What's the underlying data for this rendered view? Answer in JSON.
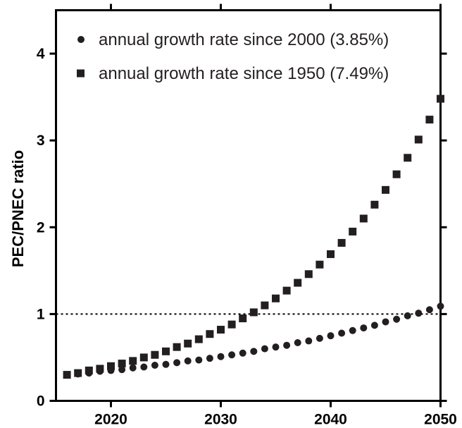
{
  "chart_data": {
    "type": "scatter",
    "ylabel": "PEC/PNEC ratio",
    "xlabel": "",
    "xlim": [
      2015,
      2050
    ],
    "ylim": [
      0,
      4.5
    ],
    "x_ticks": [
      "2020",
      "2030",
      "2040",
      "2050"
    ],
    "y_ticks": [
      "0",
      "1",
      "2",
      "3",
      "4"
    ],
    "reference_line": {
      "y": 1,
      "style": "dotted"
    },
    "legend_position": "top-left",
    "series": [
      {
        "name": "annual growth rate since 2000 (3.85%)",
        "marker": "circle",
        "x": [
          2016,
          2017,
          2018,
          2019,
          2020,
          2021,
          2022,
          2023,
          2024,
          2025,
          2026,
          2027,
          2028,
          2029,
          2030,
          2031,
          2032,
          2033,
          2034,
          2035,
          2036,
          2037,
          2038,
          2039,
          2040,
          2041,
          2042,
          2043,
          2044,
          2045,
          2046,
          2047,
          2048,
          2049,
          2050
        ],
        "values": [
          0.3,
          0.31,
          0.32,
          0.34,
          0.35,
          0.36,
          0.38,
          0.39,
          0.41,
          0.42,
          0.44,
          0.46,
          0.47,
          0.49,
          0.51,
          0.53,
          0.55,
          0.57,
          0.6,
          0.62,
          0.64,
          0.67,
          0.69,
          0.72,
          0.75,
          0.78,
          0.81,
          0.84,
          0.87,
          0.91,
          0.94,
          0.98,
          1.01,
          1.05,
          1.09
        ]
      },
      {
        "name": "annual growth rate since 1950 (7.49%)",
        "marker": "square",
        "x": [
          2016,
          2017,
          2018,
          2019,
          2020,
          2021,
          2022,
          2023,
          2024,
          2025,
          2026,
          2027,
          2028,
          2029,
          2030,
          2031,
          2032,
          2033,
          2034,
          2035,
          2036,
          2037,
          2038,
          2039,
          2040,
          2041,
          2042,
          2043,
          2044,
          2045,
          2046,
          2047,
          2048,
          2049,
          2050
        ],
        "values": [
          0.3,
          0.32,
          0.35,
          0.37,
          0.4,
          0.43,
          0.46,
          0.5,
          0.53,
          0.57,
          0.62,
          0.66,
          0.71,
          0.77,
          0.82,
          0.88,
          0.95,
          1.02,
          1.1,
          1.18,
          1.27,
          1.36,
          1.46,
          1.57,
          1.69,
          1.82,
          1.95,
          2.1,
          2.26,
          2.43,
          2.61,
          2.8,
          3.01,
          3.24,
          3.48
        ]
      }
    ]
  }
}
